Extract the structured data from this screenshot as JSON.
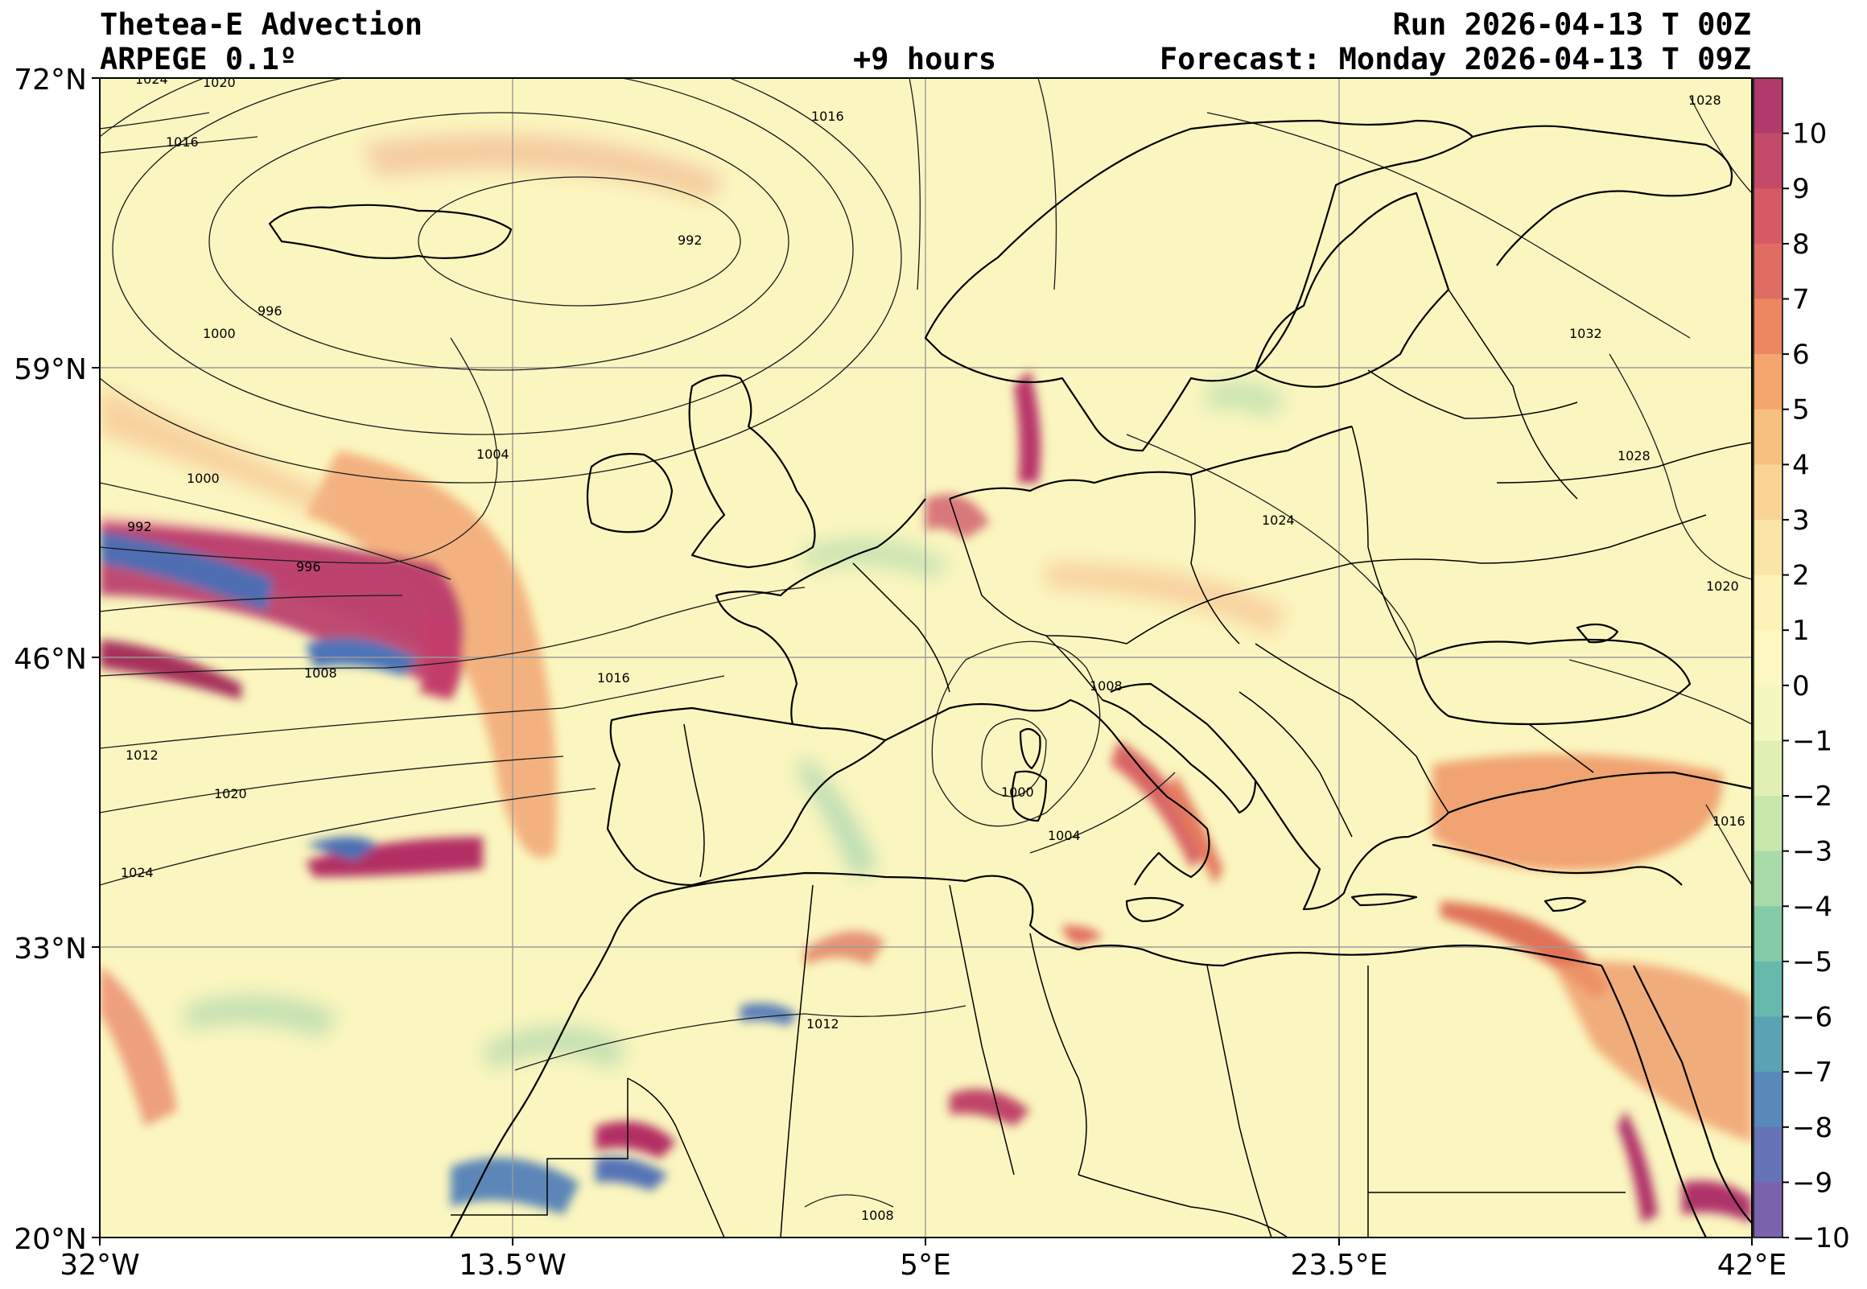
{
  "header": {
    "title": "Thetea-E Advection",
    "model": "ARPEGE 0.1º",
    "lead": "+9 hours",
    "run": "Run 2026-04-13 T 00Z",
    "forecast": "Forecast: Monday 2026-04-13 T 09Z"
  },
  "map": {
    "lon_labels": [
      "32°W",
      "13.5°W",
      "5°E",
      "23.5°E",
      "42°E"
    ],
    "lat_labels": [
      "72°N",
      "59°N",
      "46°N",
      "33°N",
      "20°N"
    ],
    "gridlines": true,
    "field": "theta-e advection (filled contours)",
    "overlay": "mean sea level pressure isobars (hPa)",
    "isobar_labels": [
      "1024",
      "1020",
      "1016",
      "1016",
      "992",
      "996",
      "1000",
      "1004",
      "1000",
      "992",
      "996",
      "1008",
      "1012",
      "1016",
      "1020",
      "1024",
      "1008",
      "1000",
      "1004",
      "1012",
      "1024",
      "1032",
      "1028",
      "1020",
      "1016",
      "1008",
      "1028"
    ]
  },
  "colorbar": {
    "ticks": [
      "10",
      "9",
      "8",
      "7",
      "6",
      "5",
      "4",
      "3",
      "2",
      "1",
      "0",
      "−1",
      "−2",
      "−3",
      "−4",
      "−5",
      "−6",
      "−7",
      "−8",
      "−9",
      "−10"
    ],
    "colors": [
      "#b03a6a",
      "#c44a6a",
      "#d55a66",
      "#e06d62",
      "#ec8762",
      "#f4a66c",
      "#f8c07e",
      "#fad493",
      "#fce5a8",
      "#fdf2b8",
      "#fcf8c0",
      "#f3f8bd",
      "#e0f0b4",
      "#c8e7ad",
      "#a8dba9",
      "#85cba7",
      "#68b9ad",
      "#5aa2b4",
      "#5789b9",
      "#6673b6",
      "#7b62ad"
    ]
  },
  "colors": {
    "background": "#fbf6bf",
    "coast": "#000000",
    "isobar": "#1a1a1a",
    "grid": "#9a9a9a"
  }
}
